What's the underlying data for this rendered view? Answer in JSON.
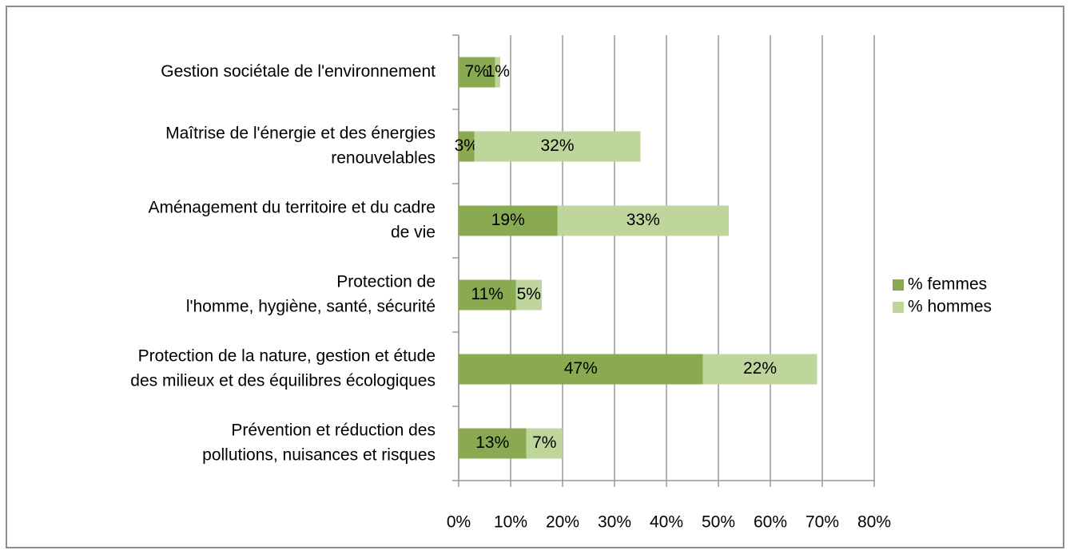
{
  "chart_data": {
    "type": "stacked-barh",
    "categories": [
      [
        "Gestion sociétale de l'environnement"
      ],
      [
        "Maîtrise de l'énergie et des énergies",
        "renouvelables"
      ],
      [
        "Aménagement du territoire et du cadre",
        "de vie"
      ],
      [
        "Protection de",
        "l'homme, hygiène, santé, sécurité"
      ],
      [
        "Protection de la nature, gestion et étude",
        "des milieux et des équilibres écologiques"
      ],
      [
        "Prévention et réduction des",
        "pollutions, nuisances et risques"
      ]
    ],
    "series": [
      {
        "name": "% femmes",
        "color": "#8aaa52",
        "values": [
          7,
          3,
          19,
          11,
          47,
          13
        ],
        "value_labels": [
          "7%",
          "3%",
          "19%",
          "11%",
          "47%",
          "13%"
        ]
      },
      {
        "name": "% hommes",
        "color": "#bed69c",
        "values": [
          1,
          32,
          33,
          5,
          22,
          7
        ],
        "value_labels": [
          "1%",
          "32%",
          "33%",
          "5%",
          "22%",
          "7%"
        ]
      }
    ],
    "xlim": [
      0,
      80
    ],
    "xticks": [
      {
        "value": 0,
        "label": "0%"
      },
      {
        "value": 10,
        "label": "10%"
      },
      {
        "value": 20,
        "label": "20%"
      },
      {
        "value": 30,
        "label": "30%"
      },
      {
        "value": 40,
        "label": "40%"
      },
      {
        "value": 50,
        "label": "50%"
      },
      {
        "value": 60,
        "label": "60%"
      },
      {
        "value": 70,
        "label": "70%"
      },
      {
        "value": 80,
        "label": "80%"
      }
    ],
    "grid": true,
    "legend": "right"
  }
}
